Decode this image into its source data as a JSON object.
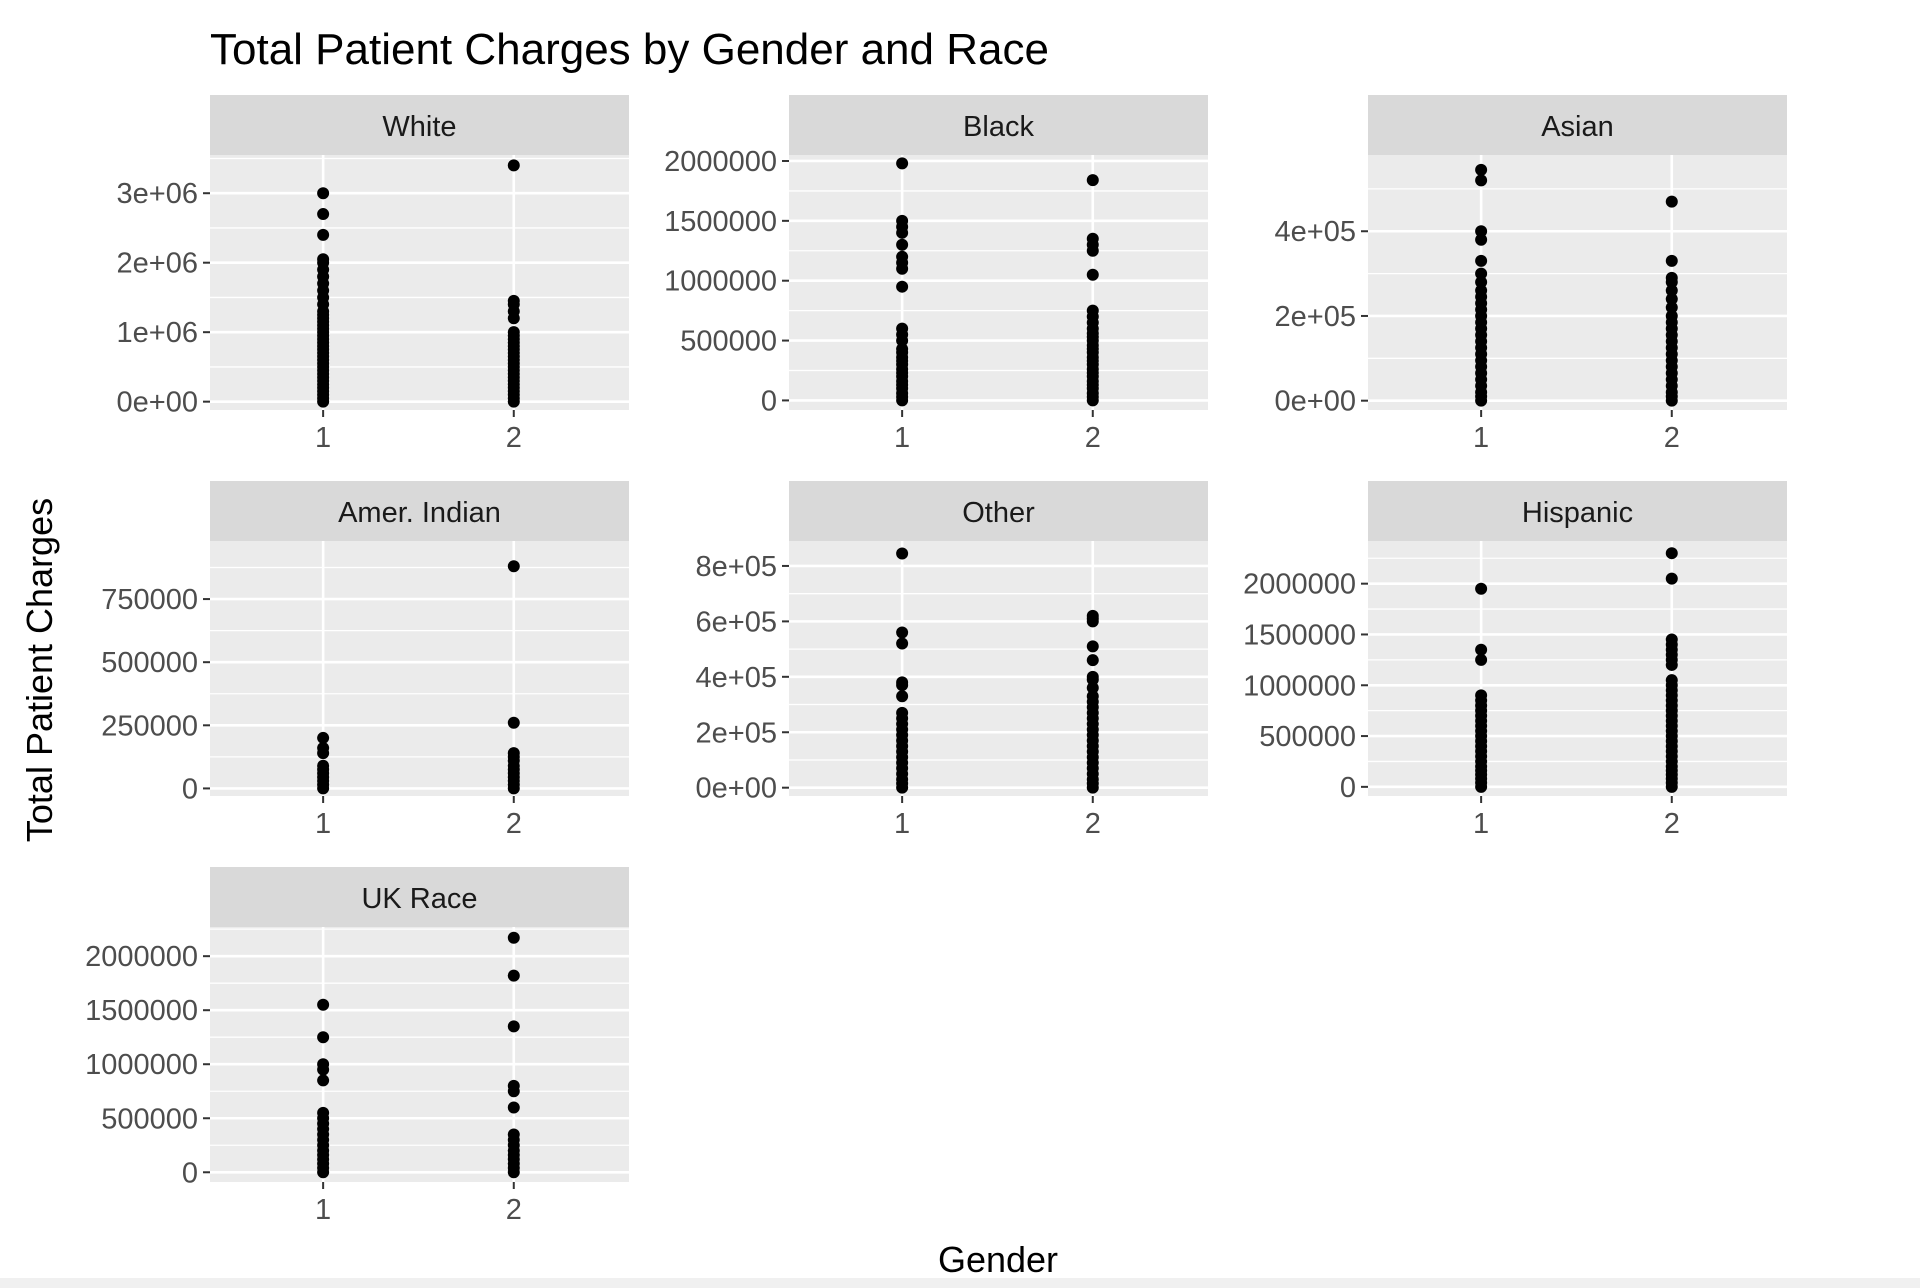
{
  "chart_data": {
    "type": "scatter",
    "title": "Total Patient Charges by Gender and Race",
    "xlabel": "Gender",
    "ylabel": "Total Patient Charges",
    "x_categories": [
      "1",
      "2"
    ],
    "grid": true,
    "point_color": "#000000",
    "panel_background": "#ebebeb",
    "strip_background": "#d9d9d9",
    "facets": [
      {
        "name": "White",
        "ylim": [
          -120000,
          3550000
        ],
        "y_ticks": [
          0,
          1000000,
          2000000,
          3000000
        ],
        "y_tick_labels": [
          "0e+00",
          "1e+06",
          "2e+06",
          "3e+06"
        ],
        "points": {
          "1": [
            0,
            50000,
            100000,
            150000,
            200000,
            250000,
            300000,
            350000,
            400000,
            450000,
            500000,
            550000,
            600000,
            650000,
            700000,
            750000,
            800000,
            850000,
            900000,
            950000,
            1000000,
            1050000,
            1100000,
            1150000,
            1200000,
            1250000,
            1300000,
            1400000,
            1500000,
            1600000,
            1700000,
            1800000,
            1900000,
            2000000,
            2050000,
            2400000,
            2700000,
            3000000
          ],
          "2": [
            0,
            50000,
            100000,
            150000,
            200000,
            250000,
            300000,
            350000,
            400000,
            450000,
            500000,
            550000,
            600000,
            650000,
            700000,
            750000,
            800000,
            850000,
            900000,
            950000,
            1000000,
            1200000,
            1300000,
            1400000,
            1450000,
            3400000
          ]
        }
      },
      {
        "name": "Black",
        "ylim": [
          -80000,
          2050000
        ],
        "y_ticks": [
          0,
          500000,
          1000000,
          1500000,
          2000000
        ],
        "y_tick_labels": [
          "0",
          "500000",
          "1000000",
          "1500000",
          "2000000"
        ],
        "points": {
          "1": [
            0,
            30000,
            60000,
            100000,
            130000,
            160000,
            200000,
            230000,
            260000,
            300000,
            330000,
            360000,
            400000,
            430000,
            500000,
            550000,
            600000,
            950000,
            1100000,
            1150000,
            1200000,
            1300000,
            1400000,
            1450000,
            1500000,
            1980000
          ],
          "2": [
            0,
            30000,
            60000,
            100000,
            130000,
            160000,
            200000,
            230000,
            260000,
            300000,
            330000,
            360000,
            400000,
            430000,
            460000,
            500000,
            530000,
            560000,
            600000,
            650000,
            700000,
            750000,
            1050000,
            1250000,
            1300000,
            1350000,
            1840000
          ]
        }
      },
      {
        "name": "Asian",
        "ylim": [
          -22000,
          580000
        ],
        "y_ticks": [
          0,
          200000,
          400000
        ],
        "y_tick_labels": [
          "0e+00",
          "2e+05",
          "4e+05"
        ],
        "points": {
          "1": [
            0,
            10000,
            20000,
            35000,
            50000,
            65000,
            80000,
            95000,
            110000,
            125000,
            140000,
            155000,
            170000,
            185000,
            200000,
            215000,
            230000,
            245000,
            260000,
            280000,
            300000,
            330000,
            380000,
            400000,
            520000,
            545000
          ],
          "2": [
            0,
            10000,
            20000,
            35000,
            50000,
            65000,
            80000,
            95000,
            110000,
            125000,
            140000,
            155000,
            170000,
            185000,
            200000,
            220000,
            240000,
            260000,
            280000,
            290000,
            330000,
            470000
          ]
        }
      },
      {
        "name": "Amer. Indian",
        "ylim": [
          -30000,
          980000
        ],
        "y_ticks": [
          0,
          250000,
          500000,
          750000
        ],
        "y_tick_labels": [
          "0",
          "250000",
          "500000",
          "750000"
        ],
        "points": {
          "1": [
            0,
            15000,
            30000,
            45000,
            60000,
            75000,
            90000,
            140000,
            160000,
            200000
          ],
          "2": [
            0,
            15000,
            30000,
            45000,
            60000,
            75000,
            90000,
            110000,
            125000,
            140000,
            260000,
            880000
          ]
        }
      },
      {
        "name": "Other",
        "ylim": [
          -30000,
          890000
        ],
        "y_ticks": [
          0,
          200000,
          400000,
          600000,
          800000
        ],
        "y_tick_labels": [
          "0e+00",
          "2e+05",
          "4e+05",
          "6e+05",
          "8e+05"
        ],
        "points": {
          "1": [
            0,
            15000,
            30000,
            50000,
            70000,
            90000,
            110000,
            130000,
            150000,
            170000,
            190000,
            210000,
            230000,
            250000,
            270000,
            330000,
            370000,
            380000,
            520000,
            560000,
            845000
          ],
          "2": [
            0,
            15000,
            30000,
            50000,
            70000,
            90000,
            110000,
            130000,
            150000,
            170000,
            190000,
            210000,
            230000,
            250000,
            270000,
            290000,
            310000,
            330000,
            360000,
            390000,
            400000,
            460000,
            510000,
            600000,
            610000,
            620000
          ]
        }
      },
      {
        "name": "Hispanic",
        "ylim": [
          -90000,
          2420000
        ],
        "y_ticks": [
          0,
          500000,
          1000000,
          1500000,
          2000000
        ],
        "y_tick_labels": [
          "0",
          "500000",
          "1000000",
          "1500000",
          "2000000"
        ],
        "points": {
          "1": [
            0,
            40000,
            80000,
            120000,
            160000,
            200000,
            250000,
            300000,
            350000,
            400000,
            450000,
            500000,
            550000,
            600000,
            650000,
            700000,
            750000,
            800000,
            850000,
            900000,
            1250000,
            1350000,
            1950000
          ],
          "2": [
            0,
            40000,
            80000,
            120000,
            160000,
            200000,
            250000,
            300000,
            350000,
            400000,
            450000,
            500000,
            550000,
            600000,
            650000,
            700000,
            750000,
            800000,
            850000,
            900000,
            950000,
            1000000,
            1050000,
            1200000,
            1250000,
            1300000,
            1350000,
            1400000,
            1450000,
            2050000,
            2300000
          ]
        }
      },
      {
        "name": "UK Race",
        "ylim": [
          -90000,
          2270000
        ],
        "y_ticks": [
          0,
          500000,
          1000000,
          1500000,
          2000000
        ],
        "y_tick_labels": [
          "0",
          "500000",
          "1000000",
          "1500000",
          "2000000"
        ],
        "points": {
          "1": [
            0,
            40000,
            80000,
            120000,
            160000,
            200000,
            250000,
            300000,
            350000,
            400000,
            450000,
            500000,
            550000,
            850000,
            950000,
            1000000,
            1250000,
            1550000
          ],
          "2": [
            0,
            40000,
            80000,
            120000,
            160000,
            200000,
            250000,
            300000,
            350000,
            600000,
            750000,
            800000,
            1350000,
            1820000,
            2170000
          ]
        }
      }
    ]
  }
}
